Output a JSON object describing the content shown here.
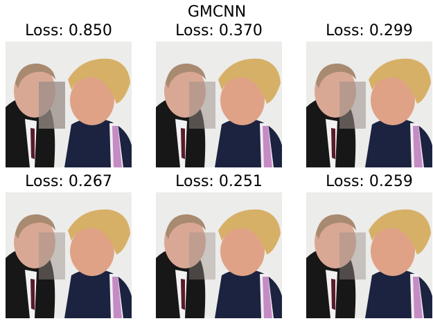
{
  "title": "GMCNN",
  "panels": [
    {
      "title": "Loss: 0.850"
    },
    {
      "title": "Loss: 0.370"
    },
    {
      "title": "Loss: 0.299"
    },
    {
      "title": "Loss: 0.267"
    },
    {
      "title": "Loss: 0.251"
    },
    {
      "title": "Loss: 0.259"
    }
  ]
}
